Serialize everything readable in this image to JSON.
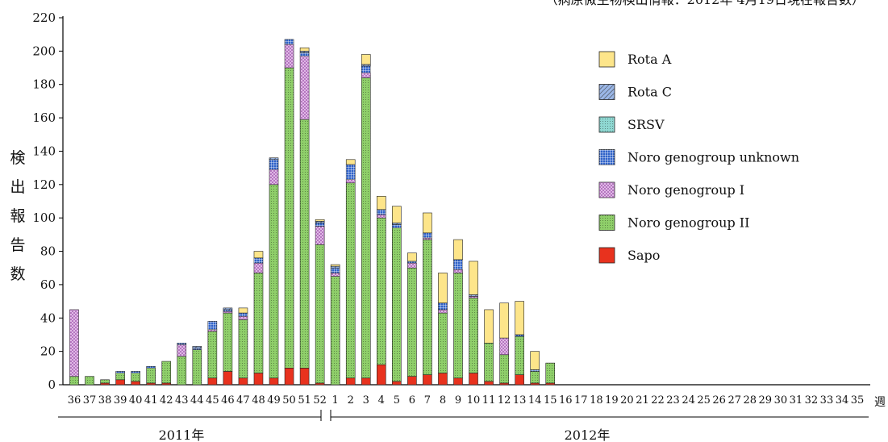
{
  "chart_data": {
    "type": "bar",
    "stacked": true,
    "title": "（病原微生物検出情報：2012年 4月19日現在報告数）",
    "ylabel": "検出報告数",
    "xlabel": "週",
    "ylim": [
      0,
      220
    ],
    "yticks": [
      0,
      20,
      40,
      60,
      80,
      100,
      120,
      140,
      160,
      180,
      200,
      220
    ],
    "grid": false,
    "legend_position": "top-right",
    "year_labels": [
      "2011年",
      "2012年"
    ],
    "categories": [
      "36",
      "37",
      "38",
      "39",
      "40",
      "41",
      "42",
      "43",
      "44",
      "45",
      "46",
      "47",
      "48",
      "49",
      "50",
      "51",
      "52",
      "1",
      "2",
      "3",
      "4",
      "5",
      "6",
      "7",
      "8",
      "9",
      "10",
      "11",
      "12",
      "13",
      "14",
      "15",
      "16",
      "17",
      "18",
      "19",
      "20",
      "21",
      "22",
      "23",
      "24",
      "25",
      "26",
      "27",
      "28",
      "29",
      "30",
      "31",
      "32",
      "33",
      "34",
      "35"
    ],
    "series": [
      {
        "name": "Sapo",
        "color": "#e8321e",
        "values": [
          0,
          0,
          1,
          3,
          2,
          1,
          1,
          0,
          0,
          4,
          8,
          4,
          7,
          4,
          10,
          10,
          1,
          0,
          4,
          4,
          12,
          2,
          5,
          6,
          7,
          4,
          7,
          2,
          1,
          6,
          1,
          1,
          0,
          0,
          0,
          0,
          0,
          0,
          0,
          0,
          0,
          0,
          0,
          0,
          0,
          0,
          0,
          0,
          0,
          0,
          0,
          0
        ]
      },
      {
        "name": "Noro genogroup II",
        "color": "#8fcf6a",
        "values": [
          5,
          5,
          2,
          4,
          5,
          9,
          13,
          17,
          21,
          28,
          35,
          35,
          60,
          116,
          180,
          149,
          83,
          65,
          117,
          180,
          88,
          92,
          65,
          81,
          36,
          63,
          45,
          23,
          17,
          23,
          7,
          12,
          0,
          0,
          0,
          0,
          0,
          0,
          0,
          0,
          0,
          0,
          0,
          0,
          0,
          0,
          0,
          0,
          0,
          0,
          0,
          0
        ]
      },
      {
        "name": "Noro genogroup I",
        "color": "#e6c3ec",
        "values": [
          40,
          0,
          0,
          0,
          0,
          0,
          0,
          7,
          0,
          1,
          1,
          2,
          6,
          9,
          14,
          38,
          11,
          2,
          2,
          3,
          2,
          0,
          3,
          1,
          2,
          2,
          1,
          0,
          10,
          0,
          0,
          0,
          0,
          0,
          0,
          0,
          0,
          0,
          0,
          0,
          0,
          0,
          0,
          0,
          0,
          0,
          0,
          0,
          0,
          0,
          0,
          0
        ]
      },
      {
        "name": "Noro genogroup unknown",
        "color": "#2f62c9",
        "values": [
          0,
          0,
          0,
          1,
          1,
          1,
          0,
          1,
          1,
          5,
          1,
          2,
          3,
          6,
          3,
          2,
          2,
          3,
          9,
          4,
          3,
          2,
          1,
          3,
          4,
          6,
          0,
          0,
          0,
          1,
          1,
          0,
          0,
          0,
          0,
          0,
          0,
          0,
          0,
          0,
          0,
          0,
          0,
          0,
          0,
          0,
          0,
          0,
          0,
          0,
          0,
          0
        ]
      },
      {
        "name": "SRSV",
        "color": "#8fd8d2",
        "values": [
          0,
          0,
          0,
          0,
          0,
          0,
          0,
          0,
          0,
          0,
          0,
          0,
          0,
          0,
          0,
          0,
          0,
          0,
          0,
          0,
          0,
          0,
          0,
          0,
          0,
          0,
          0,
          0,
          0,
          0,
          0,
          0,
          0,
          0,
          0,
          0,
          0,
          0,
          0,
          0,
          0,
          0,
          0,
          0,
          0,
          0,
          0,
          0,
          0,
          0,
          0,
          0
        ]
      },
      {
        "name": "Rota C",
        "color": "#9ab6e6",
        "values": [
          0,
          0,
          0,
          0,
          0,
          0,
          0,
          0,
          1,
          0,
          1,
          0,
          0,
          1,
          0,
          1,
          1,
          1,
          0,
          1,
          0,
          1,
          0,
          0,
          0,
          0,
          1,
          0,
          0,
          0,
          0,
          0,
          0,
          0,
          0,
          0,
          0,
          0,
          0,
          0,
          0,
          0,
          0,
          0,
          0,
          0,
          0,
          0,
          0,
          0,
          0,
          0
        ]
      },
      {
        "name": "Rota A",
        "color": "#fde58a",
        "values": [
          0,
          0,
          0,
          0,
          0,
          0,
          0,
          0,
          0,
          0,
          0,
          3,
          4,
          0,
          0,
          2,
          1,
          1,
          3,
          6,
          8,
          10,
          5,
          12,
          18,
          12,
          20,
          20,
          21,
          20,
          11,
          0,
          0,
          0,
          0,
          0,
          0,
          0,
          0,
          0,
          0,
          0,
          0,
          0,
          0,
          0,
          0,
          0,
          0,
          0,
          0,
          0
        ]
      }
    ]
  }
}
